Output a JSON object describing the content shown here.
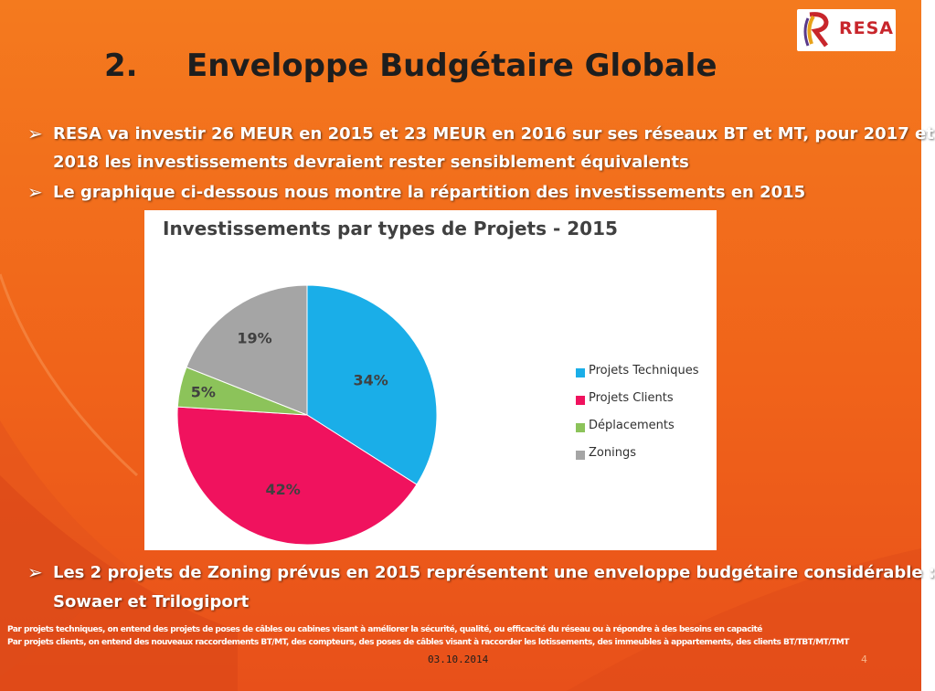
{
  "header": {
    "number": "2.",
    "title": "Enveloppe Budgétaire Globale",
    "logo_text": "RESA"
  },
  "bullets": {
    "b1_line1": "RESA va  investir 26 MEUR en 2015 et 23 MEUR en 2016 sur ses réseaux BT et MT, pour 2017 et",
    "b1_line2": "2018 les investissements devraient rester sensiblement équivalents",
    "b2": "Le graphique ci-dessous nous montre la répartition des investissements en 2015",
    "b3_line1": "Les 2 projets de Zoning prévus en 2015 représentent une enveloppe budgétaire considérable :",
    "b3_line2": "Sowaer et Trilogiport",
    "arrow_glyph": "➢"
  },
  "chart_data": {
    "type": "pie",
    "title": "Investissements par types de Projets - 2015",
    "categories": [
      "Projets Techniques",
      "Projets Clients",
      "Déplacements",
      "Zonings"
    ],
    "values": [
      34,
      42,
      5,
      19
    ],
    "labels": [
      "34%",
      "42%",
      "5%",
      "19%"
    ],
    "colors": [
      "#1aaee8",
      "#f0125e",
      "#8cc35a",
      "#a5a5a5"
    ],
    "legend_position": "right"
  },
  "footer": {
    "note1": "Par projets techniques, on entend des projets de poses de câbles ou cabines visant à améliorer la sécurité, qualité, ou efficacité du réseau ou à répondre à des besoins en capacité",
    "note2": "Par projets clients, on entend des  nouveaux raccordements BT/MT, des compteurs, des poses de câbles visant à raccorder les lotissements, des immeubles à appartements, des clients BT/TBT/MT/TMT",
    "date": "03.10.2014",
    "page": "4"
  },
  "colors": {
    "background": "#f0631a",
    "title_text": "#1e1e1e",
    "logo_red": "#c8262c"
  }
}
